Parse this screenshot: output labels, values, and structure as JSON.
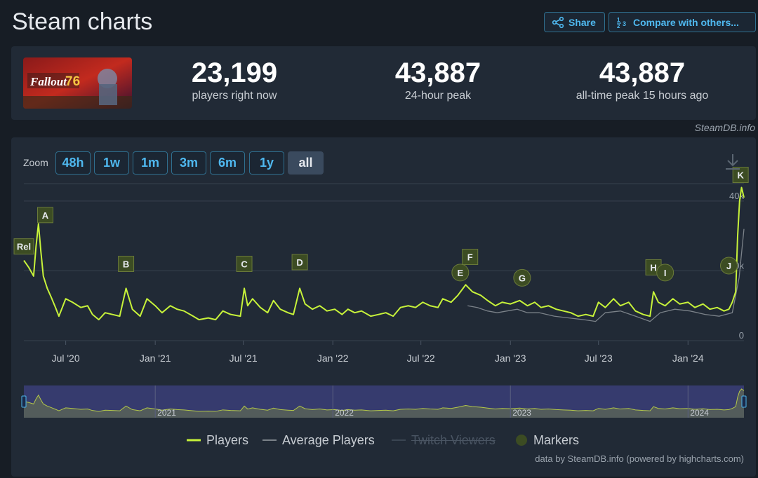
{
  "page": {
    "title": "Steam charts",
    "share_label": "Share",
    "compare_label": "Compare with others..."
  },
  "stats": {
    "game_logo_text": "Fallout 76",
    "current": {
      "value": "23,199",
      "label": "players right now"
    },
    "peak24": {
      "value": "43,887",
      "label": "24-hour peak"
    },
    "alltime": {
      "value": "43,887",
      "label": "all-time peak 15 hours ago"
    },
    "attribution": "SteamDB.info"
  },
  "zoom": {
    "label": "Zoom",
    "buttons": [
      "48h",
      "1w",
      "1m",
      "3m",
      "6m",
      "1y",
      "all"
    ],
    "active": "all"
  },
  "legend": {
    "players": "Players",
    "average": "Average Players",
    "twitch": "Twitch Viewers",
    "markers": "Markers"
  },
  "footer": "data by SteamDB.info (powered by highcharts.com)",
  "colors": {
    "players": "#c7f23a",
    "average": "#7b8289",
    "accent": "#4fb8ef",
    "marker_bg": "#3c4c23",
    "navigator_bg": "#3a3e78"
  },
  "chart_data": {
    "type": "line",
    "ylim": [
      0,
      45000
    ],
    "yticks": [
      {
        "v": 0,
        "label": "0"
      },
      {
        "v": 20000,
        "label": "20k"
      },
      {
        "v": 40000,
        "label": "40k"
      }
    ],
    "xticks": [
      {
        "x": "2020-07-01",
        "label": "Jul '20"
      },
      {
        "x": "2021-01-01",
        "label": "Jan '21"
      },
      {
        "x": "2021-07-01",
        "label": "Jul '21"
      },
      {
        "x": "2022-01-01",
        "label": "Jan '22"
      },
      {
        "x": "2022-07-01",
        "label": "Jul '22"
      },
      {
        "x": "2023-01-01",
        "label": "Jan '23"
      },
      {
        "x": "2023-07-01",
        "label": "Jul '23"
      },
      {
        "x": "2024-01-01",
        "label": "Jan '24"
      }
    ],
    "xlim": [
      "2020-04-06",
      "2024-04-25"
    ],
    "navigator_labels": [
      {
        "x": "2021-01-01",
        "label": "2021"
      },
      {
        "x": "2022-01-01",
        "label": "2022"
      },
      {
        "x": "2023-01-01",
        "label": "2023"
      },
      {
        "x": "2024-01-01",
        "label": "2024"
      }
    ],
    "series": [
      {
        "name": "Players",
        "points": [
          [
            "2020-04-06",
            23000
          ],
          [
            "2020-04-16",
            21000
          ],
          [
            "2020-04-26",
            18500
          ],
          [
            "2020-05-01",
            27000
          ],
          [
            "2020-05-06",
            33500
          ],
          [
            "2020-05-11",
            25500
          ],
          [
            "2020-05-16",
            18500
          ],
          [
            "2020-05-24",
            15000
          ],
          [
            "2020-06-01",
            12500
          ],
          [
            "2020-06-10",
            9500
          ],
          [
            "2020-06-17",
            7000
          ],
          [
            "2020-06-24",
            9500
          ],
          [
            "2020-07-01",
            12000
          ],
          [
            "2020-07-15",
            11000
          ],
          [
            "2020-08-01",
            9500
          ],
          [
            "2020-08-15",
            10000
          ],
          [
            "2020-08-25",
            7500
          ],
          [
            "2020-09-07",
            6000
          ],
          [
            "2020-09-20",
            8000
          ],
          [
            "2020-10-05",
            7500
          ],
          [
            "2020-10-20",
            7000
          ],
          [
            "2020-11-02",
            15000
          ],
          [
            "2020-11-15",
            9000
          ],
          [
            "2020-12-01",
            7000
          ],
          [
            "2020-12-15",
            12000
          ],
          [
            "2021-01-01",
            10000
          ],
          [
            "2021-01-15",
            8000
          ],
          [
            "2021-02-01",
            10000
          ],
          [
            "2021-02-15",
            9000
          ],
          [
            "2021-03-01",
            8500
          ],
          [
            "2021-03-20",
            7000
          ],
          [
            "2021-04-01",
            6000
          ],
          [
            "2021-04-20",
            6500
          ],
          [
            "2021-05-05",
            6000
          ],
          [
            "2021-05-20",
            8500
          ],
          [
            "2021-06-05",
            7500
          ],
          [
            "2021-06-25",
            7000
          ],
          [
            "2021-07-03",
            15000
          ],
          [
            "2021-07-10",
            10000
          ],
          [
            "2021-07-20",
            12000
          ],
          [
            "2021-08-05",
            9500
          ],
          [
            "2021-08-20",
            8000
          ],
          [
            "2021-09-01",
            11500
          ],
          [
            "2021-09-15",
            9000
          ],
          [
            "2021-10-01",
            8000
          ],
          [
            "2021-10-12",
            7500
          ],
          [
            "2021-10-25",
            15000
          ],
          [
            "2021-11-05",
            10500
          ],
          [
            "2021-11-20",
            9000
          ],
          [
            "2021-12-05",
            10000
          ],
          [
            "2021-12-20",
            8500
          ],
          [
            "2022-01-05",
            9000
          ],
          [
            "2022-01-20",
            7500
          ],
          [
            "2022-02-01",
            9000
          ],
          [
            "2022-02-15",
            8000
          ],
          [
            "2022-03-01",
            8500
          ],
          [
            "2022-03-20",
            7000
          ],
          [
            "2022-04-05",
            7500
          ],
          [
            "2022-04-20",
            8000
          ],
          [
            "2022-05-05",
            7000
          ],
          [
            "2022-05-20",
            9500
          ],
          [
            "2022-06-05",
            10000
          ],
          [
            "2022-06-20",
            9500
          ],
          [
            "2022-07-05",
            11000
          ],
          [
            "2022-07-20",
            10000
          ],
          [
            "2022-08-05",
            9500
          ],
          [
            "2022-08-15",
            12000
          ],
          [
            "2022-09-01",
            11000
          ],
          [
            "2022-09-15",
            13000
          ],
          [
            "2022-10-01",
            16000
          ],
          [
            "2022-10-15",
            14000
          ],
          [
            "2022-11-01",
            13000
          ],
          [
            "2022-11-15",
            11500
          ],
          [
            "2022-12-01",
            10000
          ],
          [
            "2022-12-15",
            11000
          ],
          [
            "2023-01-01",
            10500
          ],
          [
            "2023-01-20",
            11500
          ],
          [
            "2023-02-05",
            10000
          ],
          [
            "2023-02-20",
            11000
          ],
          [
            "2023-03-05",
            9500
          ],
          [
            "2023-03-20",
            10000
          ],
          [
            "2023-04-05",
            9000
          ],
          [
            "2023-04-20",
            8500
          ],
          [
            "2023-05-05",
            8000
          ],
          [
            "2023-05-20",
            7000
          ],
          [
            "2023-06-05",
            7500
          ],
          [
            "2023-06-20",
            7000
          ],
          [
            "2023-07-01",
            11000
          ],
          [
            "2023-07-15",
            9500
          ],
          [
            "2023-08-01",
            12000
          ],
          [
            "2023-08-15",
            10000
          ],
          [
            "2023-09-01",
            11000
          ],
          [
            "2023-09-15",
            8500
          ],
          [
            "2023-10-01",
            7500
          ],
          [
            "2023-10-15",
            7000
          ],
          [
            "2023-10-22",
            14000
          ],
          [
            "2023-11-01",
            11000
          ],
          [
            "2023-11-15",
            10000
          ],
          [
            "2023-12-01",
            12000
          ],
          [
            "2023-12-15",
            10500
          ],
          [
            "2024-01-01",
            11000
          ],
          [
            "2024-01-15",
            9500
          ],
          [
            "2024-02-01",
            10500
          ],
          [
            "2024-02-15",
            9000
          ],
          [
            "2024-03-01",
            9500
          ],
          [
            "2024-03-15",
            8500
          ],
          [
            "2024-03-25",
            9000
          ],
          [
            "2024-04-01",
            11000
          ],
          [
            "2024-04-08",
            14000
          ],
          [
            "2024-04-12",
            30000
          ],
          [
            "2024-04-16",
            40000
          ],
          [
            "2024-04-20",
            43887
          ],
          [
            "2024-04-25",
            41000
          ]
        ]
      },
      {
        "name": "Average Players",
        "points": [
          [
            "2022-10-05",
            10000
          ],
          [
            "2022-10-25",
            9500
          ],
          [
            "2022-11-15",
            8500
          ],
          [
            "2022-12-05",
            8000
          ],
          [
            "2022-12-25",
            8500
          ],
          [
            "2023-01-15",
            9000
          ],
          [
            "2023-02-05",
            8000
          ],
          [
            "2023-03-01",
            8000
          ],
          [
            "2023-04-01",
            7000
          ],
          [
            "2023-05-01",
            6500
          ],
          [
            "2023-06-01",
            6000
          ],
          [
            "2023-06-25",
            5500
          ],
          [
            "2023-07-15",
            8000
          ],
          [
            "2023-08-15",
            8500
          ],
          [
            "2023-09-15",
            7000
          ],
          [
            "2023-10-15",
            5500
          ],
          [
            "2023-11-05",
            8000
          ],
          [
            "2023-12-05",
            9000
          ],
          [
            "2024-01-05",
            8500
          ],
          [
            "2024-02-05",
            7500
          ],
          [
            "2024-03-05",
            7000
          ],
          [
            "2024-04-01",
            8000
          ],
          [
            "2024-04-15",
            18000
          ],
          [
            "2024-04-25",
            32000
          ]
        ]
      }
    ],
    "markers": [
      {
        "label": "Rel",
        "x": "2020-04-06",
        "y": 27000,
        "shape": "square"
      },
      {
        "label": "A",
        "x": "2020-05-20",
        "y": 36000,
        "shape": "square"
      },
      {
        "label": "B",
        "x": "2020-11-02",
        "y": 22000,
        "shape": "square"
      },
      {
        "label": "C",
        "x": "2021-07-03",
        "y": 22000,
        "shape": "square"
      },
      {
        "label": "D",
        "x": "2021-10-25",
        "y": 22500,
        "shape": "square"
      },
      {
        "label": "E",
        "x": "2022-09-20",
        "y": 19500,
        "shape": "circle"
      },
      {
        "label": "F",
        "x": "2022-10-10",
        "y": 24000,
        "shape": "square"
      },
      {
        "label": "G",
        "x": "2023-01-25",
        "y": 18000,
        "shape": "circle"
      },
      {
        "label": "H",
        "x": "2023-10-22",
        "y": 21000,
        "shape": "square"
      },
      {
        "label": "I",
        "x": "2023-11-15",
        "y": 19500,
        "shape": "circle"
      },
      {
        "label": "J",
        "x": "2024-03-25",
        "y": 21500,
        "shape": "circle"
      },
      {
        "label": "K",
        "x": "2024-04-18",
        "y": 47500,
        "shape": "square"
      }
    ]
  }
}
